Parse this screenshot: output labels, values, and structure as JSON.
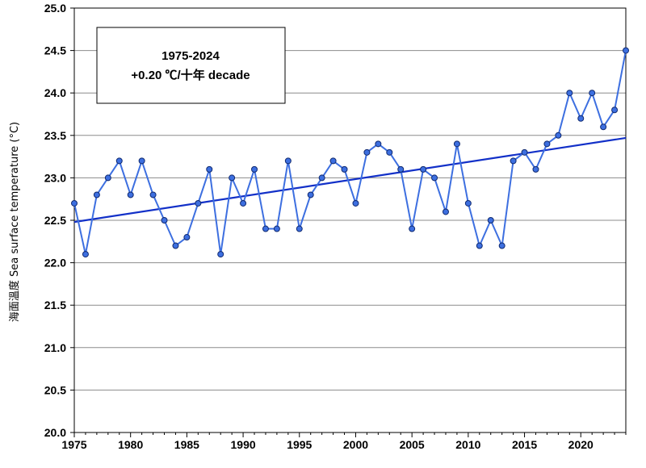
{
  "chart_data": {
    "type": "line",
    "ylabel": "海面溫度 Sea surface temperature (°C)",
    "xlim": [
      1975,
      2024
    ],
    "ylim": [
      20.0,
      25.0
    ],
    "x_ticks": [
      1975,
      1980,
      1985,
      1990,
      1995,
      2000,
      2005,
      2010,
      2015,
      2020
    ],
    "y_ticks": [
      20.0,
      20.5,
      21.0,
      21.5,
      22.0,
      22.5,
      23.0,
      23.5,
      24.0,
      24.5,
      25.0
    ],
    "grid": "horizontal",
    "annotation": {
      "line1": "1975-2024",
      "line2": "+0.20 ℃/十年 decade"
    },
    "series": [
      {
        "marker_color": "#3d6fe0",
        "line_color": "#3d6fe0",
        "x": [
          1975,
          1976,
          1977,
          1978,
          1979,
          1980,
          1981,
          1982,
          1983,
          1984,
          1985,
          1986,
          1987,
          1988,
          1989,
          1990,
          1991,
          1992,
          1993,
          1994,
          1995,
          1996,
          1997,
          1998,
          1999,
          2000,
          2001,
          2002,
          2003,
          2004,
          2005,
          2006,
          2007,
          2008,
          2009,
          2010,
          2011,
          2012,
          2013,
          2014,
          2015,
          2016,
          2017,
          2018,
          2019,
          2020,
          2021,
          2022,
          2023,
          2024
        ],
        "y": [
          22.7,
          22.1,
          22.8,
          23.0,
          23.2,
          22.8,
          23.2,
          22.8,
          22.5,
          22.2,
          22.3,
          22.7,
          23.1,
          22.1,
          23.0,
          22.7,
          23.1,
          22.4,
          22.4,
          23.2,
          22.4,
          22.8,
          23.0,
          23.2,
          23.1,
          22.7,
          23.3,
          23.4,
          23.3,
          23.1,
          22.4,
          23.1,
          23.0,
          22.6,
          23.4,
          22.7,
          22.2,
          22.5,
          22.2,
          23.2,
          23.3,
          23.1,
          23.4,
          23.5,
          24.0,
          23.7,
          24.0,
          23.6,
          23.8,
          24.5
        ]
      }
    ],
    "trend": {
      "color": "#1230c8",
      "y_at_1975": 22.48,
      "y_at_2024": 23.47
    }
  }
}
